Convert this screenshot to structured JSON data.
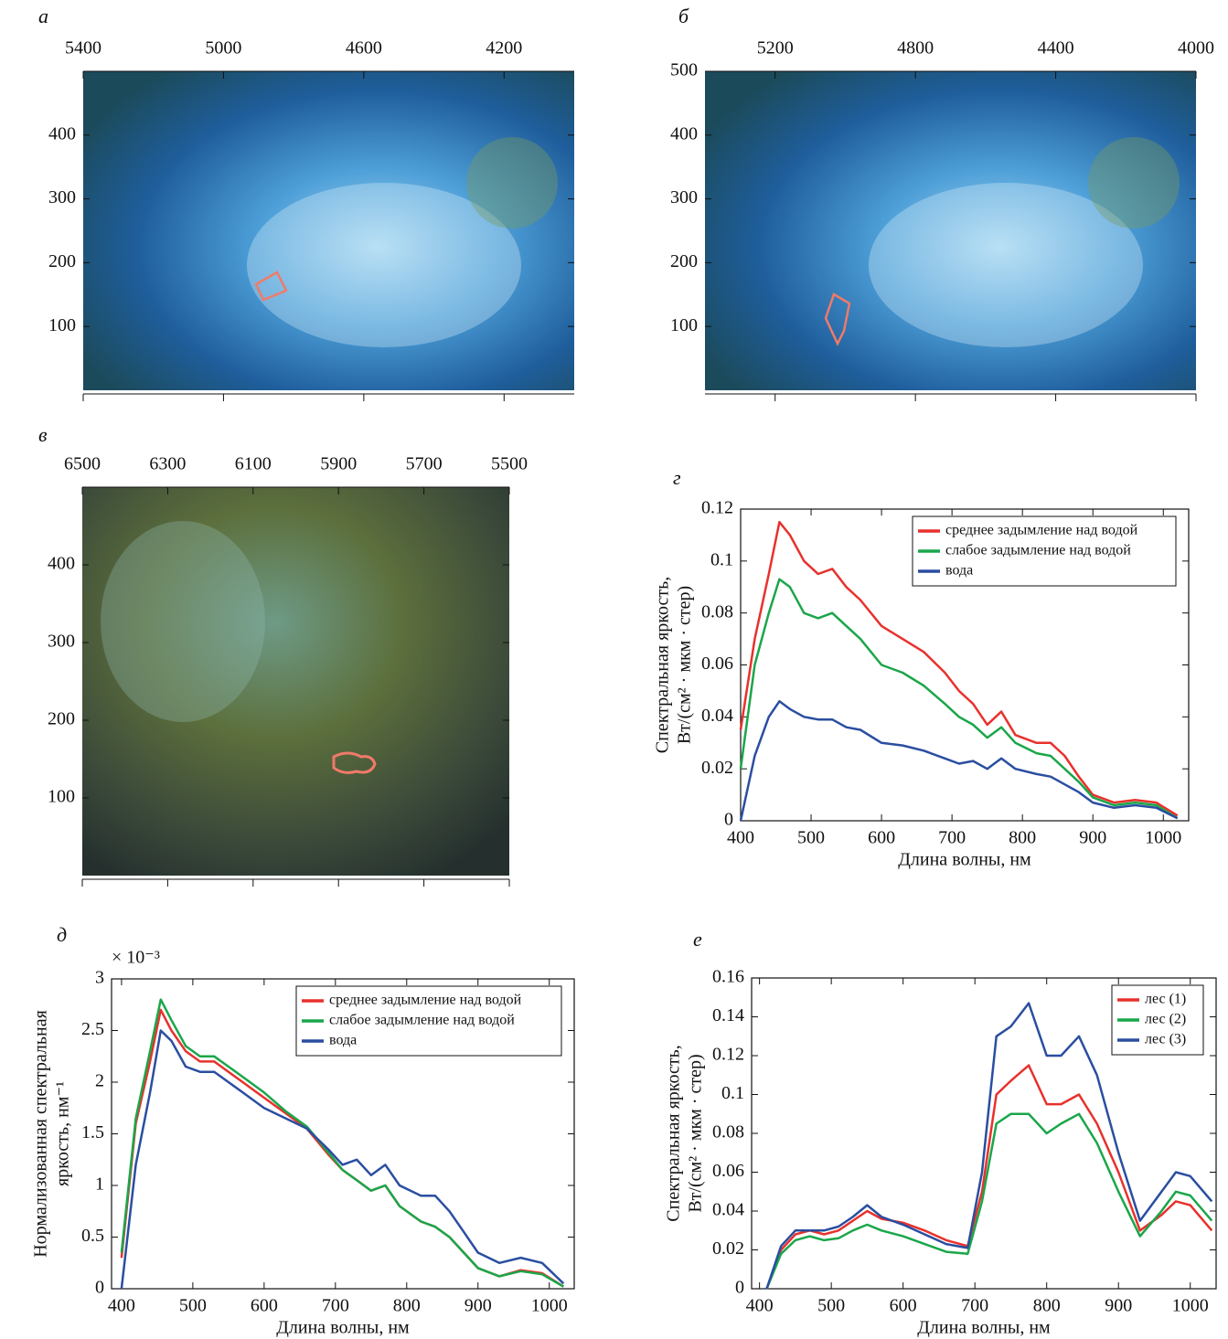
{
  "chart_data": [
    {
      "type": "image",
      "label": "а",
      "xlim": [
        5400,
        4000
      ],
      "xticks": [
        5400,
        5000,
        4600,
        4200
      ],
      "ylim": [
        0,
        500
      ],
      "yticks": [
        100,
        200,
        300,
        400
      ]
    },
    {
      "type": "image",
      "label": "б",
      "xlim": [
        5400,
        4000
      ],
      "xticks": [
        5200,
        4800,
        4400,
        4000
      ],
      "ylim": [
        0,
        500
      ],
      "yticks": [
        100,
        200,
        300,
        400,
        500
      ]
    },
    {
      "type": "image",
      "label": "в",
      "xlim": [
        6500,
        5500
      ],
      "xticks": [
        6500,
        6300,
        6100,
        5900,
        5700,
        5500
      ],
      "ylim": [
        0,
        500
      ],
      "yticks": [
        100,
        200,
        300,
        400
      ]
    },
    {
      "type": "line",
      "label": "г",
      "xlabel": "Длина волны, нм",
      "ylabel": [
        "Спектральная яркость,",
        "Вт/(см² · мкм · стер)"
      ],
      "xlim": [
        400,
        1036
      ],
      "xticks": [
        400,
        500,
        600,
        700,
        800,
        900,
        1000
      ],
      "ylim": [
        0,
        0.12
      ],
      "yticks": [
        0,
        0.02,
        0.04,
        0.06,
        0.08,
        0.1,
        0.12
      ],
      "legend": "upper right",
      "x": [
        400,
        420,
        440,
        455,
        470,
        490,
        510,
        530,
        550,
        570,
        600,
        630,
        660,
        690,
        710,
        730,
        750,
        770,
        790,
        820,
        840,
        860,
        880,
        900,
        930,
        960,
        990,
        1020
      ],
      "series": [
        {
          "name": "среднее задымление над водой",
          "color": "#e8312c",
          "values": [
            0.035,
            0.07,
            0.095,
            0.115,
            0.11,
            0.1,
            0.095,
            0.097,
            0.09,
            0.085,
            0.075,
            0.07,
            0.065,
            0.057,
            0.05,
            0.045,
            0.037,
            0.042,
            0.033,
            0.03,
            0.03,
            0.025,
            0.017,
            0.01,
            0.007,
            0.008,
            0.007,
            0.002
          ]
        },
        {
          "name": "слабое задымление над водой",
          "color": "#1aa64a",
          "values": [
            0.02,
            0.06,
            0.08,
            0.093,
            0.09,
            0.08,
            0.078,
            0.08,
            0.075,
            0.07,
            0.06,
            0.057,
            0.052,
            0.045,
            0.04,
            0.037,
            0.032,
            0.036,
            0.03,
            0.026,
            0.025,
            0.02,
            0.015,
            0.009,
            0.006,
            0.007,
            0.006,
            0.001
          ]
        },
        {
          "name": "вода",
          "color": "#2a4ea0",
          "values": [
            0,
            0.025,
            0.04,
            0.046,
            0.043,
            0.04,
            0.039,
            0.039,
            0.036,
            0.035,
            0.03,
            0.029,
            0.027,
            0.024,
            0.022,
            0.023,
            0.02,
            0.024,
            0.02,
            0.018,
            0.017,
            0.014,
            0.011,
            0.007,
            0.005,
            0.006,
            0.005,
            0.001
          ]
        }
      ]
    },
    {
      "type": "line",
      "label": "д",
      "xlabel": "Длина волны, нм",
      "ylabel": [
        "Нормализованная спектральная",
        "яркость, нм⁻¹"
      ],
      "y_multiplier": "× 10⁻³",
      "xlim": [
        386,
        1035
      ],
      "xticks": [
        400,
        500,
        600,
        700,
        800,
        900,
        1000
      ],
      "ylim": [
        0,
        3
      ],
      "yticks": [
        0,
        0.5,
        1,
        1.5,
        2,
        2.5,
        3
      ],
      "legend": "upper right",
      "x": [
        400,
        420,
        440,
        455,
        470,
        490,
        510,
        530,
        550,
        570,
        600,
        630,
        660,
        690,
        710,
        730,
        750,
        770,
        790,
        820,
        840,
        860,
        880,
        900,
        930,
        960,
        990,
        1020
      ],
      "series": [
        {
          "name": "среднее задымление над водой",
          "color": "#e8312c",
          "values": [
            0.3,
            1.6,
            2.2,
            2.7,
            2.5,
            2.3,
            2.2,
            2.2,
            2.1,
            2.0,
            1.85,
            1.7,
            1.55,
            1.3,
            1.15,
            1.05,
            0.95,
            1.0,
            0.8,
            0.65,
            0.6,
            0.5,
            0.35,
            0.2,
            0.12,
            0.18,
            0.15,
            0.02
          ]
        },
        {
          "name": "слабое задымление над водой",
          "color": "#1aa64a",
          "values": [
            0.35,
            1.65,
            2.3,
            2.8,
            2.6,
            2.35,
            2.25,
            2.25,
            2.15,
            2.05,
            1.9,
            1.72,
            1.57,
            1.32,
            1.15,
            1.05,
            0.95,
            1.0,
            0.8,
            0.65,
            0.6,
            0.5,
            0.35,
            0.2,
            0.12,
            0.17,
            0.14,
            0.02
          ]
        },
        {
          "name": "вода",
          "color": "#2a4ea0",
          "values": [
            0,
            1.2,
            1.9,
            2.5,
            2.4,
            2.15,
            2.1,
            2.1,
            2.0,
            1.9,
            1.75,
            1.65,
            1.55,
            1.35,
            1.2,
            1.25,
            1.1,
            1.2,
            1.0,
            0.9,
            0.9,
            0.75,
            0.55,
            0.35,
            0.25,
            0.3,
            0.25,
            0.05
          ]
        }
      ]
    },
    {
      "type": "line",
      "label": "е",
      "xlabel": "Длина волны, нм",
      "ylabel": [
        "Спектральная яркость,",
        "Вт/(см² · мкм · стер)"
      ],
      "xlim": [
        389,
        1036
      ],
      "xticks": [
        400,
        500,
        600,
        700,
        800,
        900,
        1000
      ],
      "ylim": [
        0,
        0.16
      ],
      "yticks": [
        0,
        0.02,
        0.04,
        0.06,
        0.08,
        0.1,
        0.12,
        0.14,
        0.16
      ],
      "legend": "upper right",
      "x": [
        410,
        430,
        450,
        470,
        490,
        510,
        530,
        550,
        570,
        600,
        630,
        660,
        690,
        710,
        730,
        750,
        775,
        800,
        820,
        845,
        870,
        900,
        930,
        960,
        980,
        1000,
        1030
      ],
      "series": [
        {
          "name": "лес (1)",
          "color": "#e8312c",
          "values": [
            0,
            0.02,
            0.028,
            0.03,
            0.028,
            0.03,
            0.035,
            0.04,
            0.036,
            0.034,
            0.03,
            0.025,
            0.022,
            0.05,
            0.1,
            0.107,
            0.115,
            0.095,
            0.095,
            0.1,
            0.085,
            0.06,
            0.03,
            0.038,
            0.045,
            0.043,
            0.03
          ]
        },
        {
          "name": "лес (2)",
          "color": "#1aa64a",
          "values": [
            0,
            0.018,
            0.025,
            0.027,
            0.025,
            0.026,
            0.03,
            0.033,
            0.03,
            0.027,
            0.023,
            0.019,
            0.018,
            0.045,
            0.085,
            0.09,
            0.09,
            0.08,
            0.085,
            0.09,
            0.075,
            0.05,
            0.027,
            0.04,
            0.05,
            0.048,
            0.035
          ]
        },
        {
          "name": "лес (3)",
          "color": "#2a4ea0",
          "values": [
            0,
            0.022,
            0.03,
            0.03,
            0.03,
            0.032,
            0.037,
            0.043,
            0.037,
            0.033,
            0.028,
            0.023,
            0.021,
            0.06,
            0.13,
            0.135,
            0.147,
            0.12,
            0.12,
            0.13,
            0.11,
            0.07,
            0.035,
            0.05,
            0.06,
            0.058,
            0.045
          ]
        }
      ]
    }
  ]
}
